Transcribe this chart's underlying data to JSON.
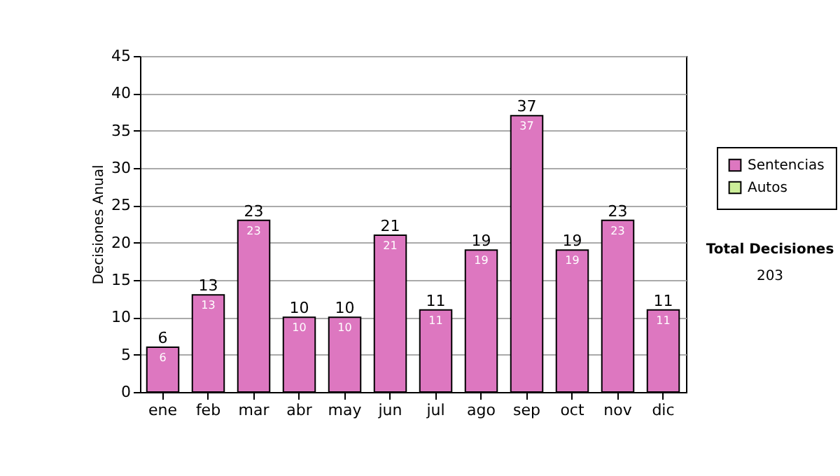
{
  "chart_data": {
    "type": "bar",
    "ylabel": "Decisiones Anual",
    "categories": [
      "ene",
      "feb",
      "mar",
      "abr",
      "may",
      "jun",
      "jul",
      "ago",
      "sep",
      "oct",
      "nov",
      "dic"
    ],
    "series": [
      {
        "name": "Sentencias",
        "color": "#dd77c0",
        "values": [
          6,
          13,
          23,
          10,
          10,
          21,
          11,
          19,
          37,
          19,
          23,
          11
        ]
      },
      {
        "name": "Autos",
        "color": "#ccee99",
        "values": [
          null,
          null,
          null,
          null,
          null,
          null,
          null,
          null,
          null,
          null,
          null,
          null
        ]
      }
    ],
    "data_labels": true,
    "totals": [
      "6",
      "13",
      "23",
      "10",
      "10",
      "21",
      "11",
      "19",
      "37",
      "19",
      "23",
      "11"
    ],
    "ylim": [
      0,
      45
    ],
    "yticks": [
      0,
      5,
      10,
      15,
      20,
      25,
      30,
      35,
      40,
      45
    ],
    "grid": "y",
    "legend": "right",
    "annotations": [
      "Total Decisiones",
      "203"
    ]
  }
}
